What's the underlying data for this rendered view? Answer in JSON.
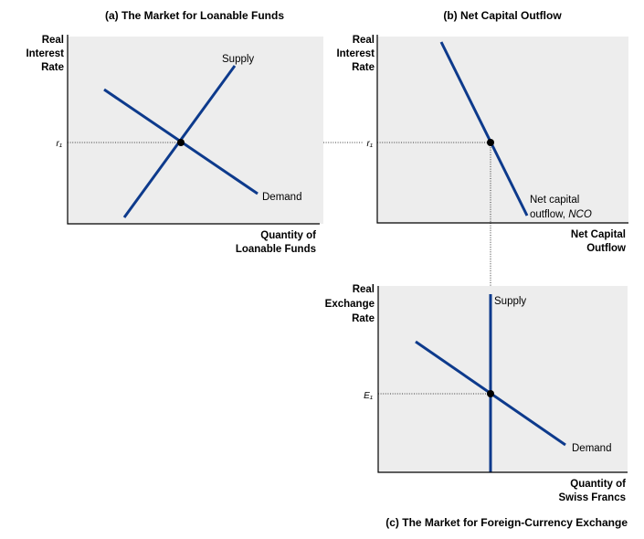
{
  "panel_a": {
    "title": "(a) The Market for Loanable Funds",
    "y_label": [
      "Real",
      "Interest",
      "Rate"
    ],
    "x_label": [
      "Quantity of",
      "Loanable Funds"
    ],
    "tick_label": "r₁",
    "supply_label": "Supply",
    "demand_label": "Demand"
  },
  "panel_b": {
    "title": "(b) Net Capital Outflow",
    "y_label": [
      "Real",
      "Interest",
      "Rate"
    ],
    "x_label": [
      "Net Capital",
      "Outflow"
    ],
    "tick_label": "r₁",
    "curve_label_line1": "Net capital",
    "curve_label_line2_prefix": "outflow, ",
    "curve_label_line2_italic": "NCO"
  },
  "panel_c": {
    "title": "(c) The Market for Foreign-Currency Exchange",
    "y_label": [
      "Real",
      "Exchange",
      "Rate"
    ],
    "x_label": [
      "Quantity of",
      "Swiss Francs"
    ],
    "tick_label": "E₁",
    "supply_label": "Supply",
    "demand_label": "Demand"
  },
  "colors": {
    "curve": "#0d3a8c",
    "panel_background": "#ededed",
    "axis": "#000000"
  }
}
